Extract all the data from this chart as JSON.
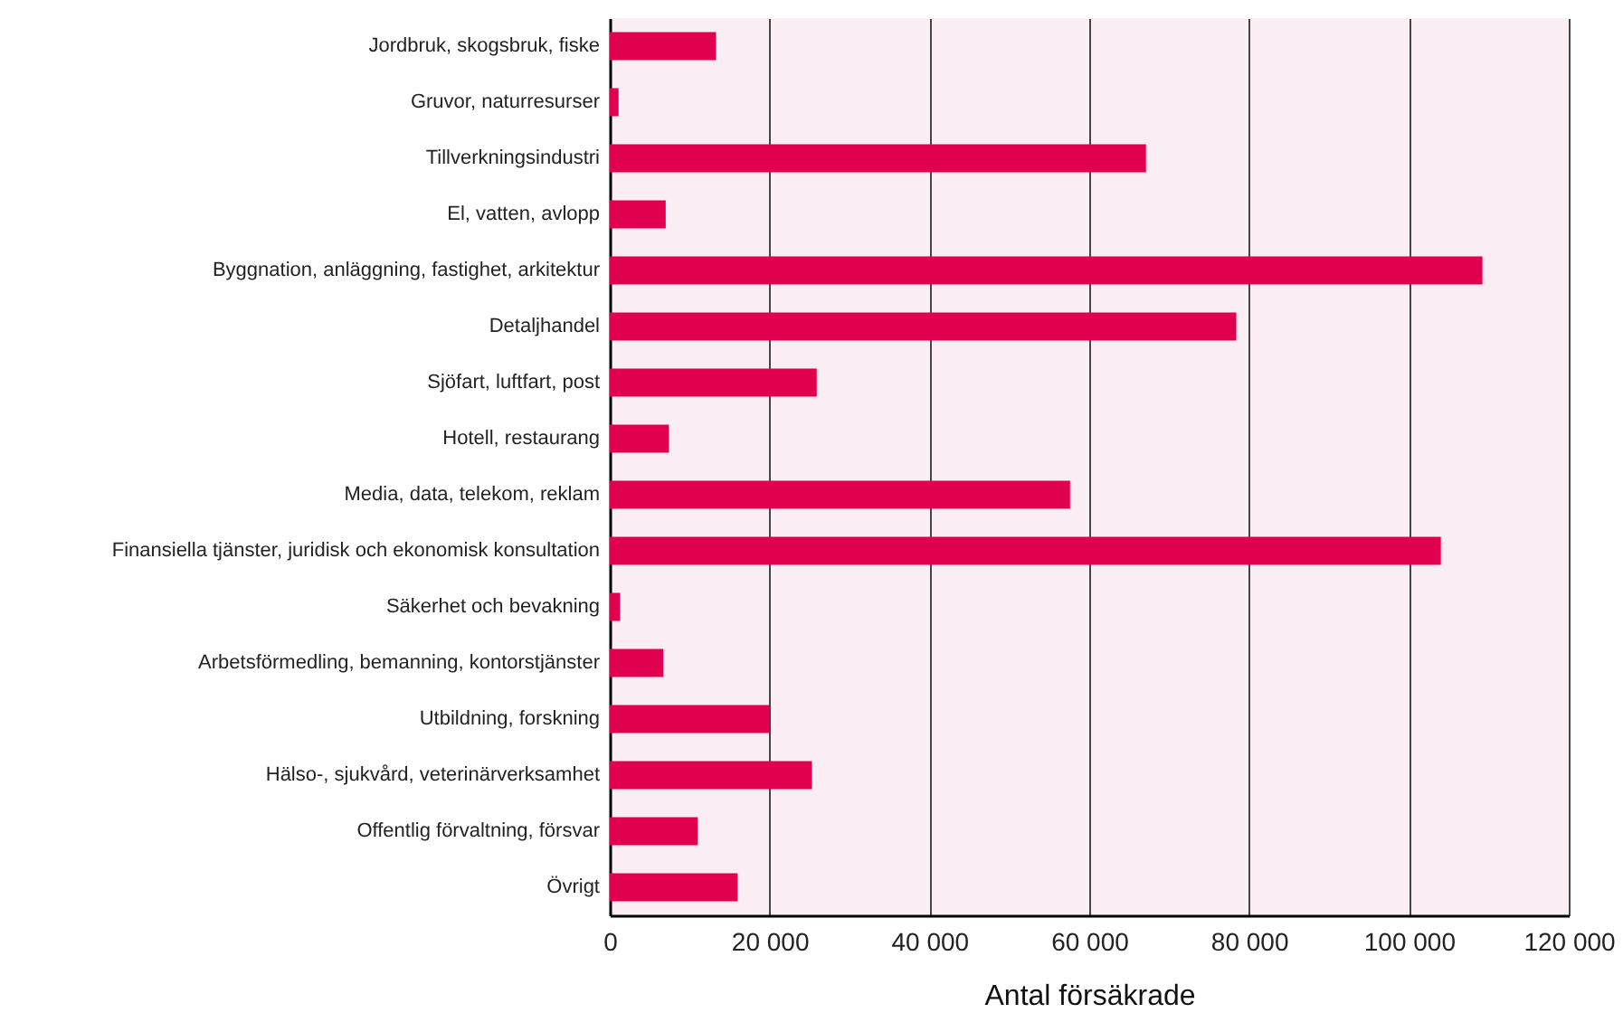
{
  "chart_data": {
    "type": "bar",
    "orientation": "horizontal",
    "xlabel": "Antal försäkrade",
    "categories": [
      "Jordbruk, skogsbruk, fiske",
      "Gruvor, naturresurser",
      "Tillverkningsindustri",
      "El, vatten, avlopp",
      "Byggnation, anläggning, fastighet, arkitektur",
      "Detaljhandel",
      "Sjöfart, luftfart, post",
      "Hotell, restaurang",
      "Media, data, telekom, reklam",
      "Finansiella tjänster, juridisk och ekonomisk konsultation",
      "Säkerhet och bevakning",
      "Arbetsförmedling, bemanning, kontorstjänster",
      "Utbildning, forskning",
      "Hälso-, sjukvård, veterinärverksamhet",
      "Offentlig förvaltning, försvar",
      "Övrigt"
    ],
    "values": [
      13300,
      1100,
      67100,
      7000,
      109200,
      78400,
      25900,
      7400,
      57600,
      104000,
      1300,
      6700,
      20000,
      25300,
      11000,
      16000
    ],
    "color": "#e0004f",
    "xlim": [
      0,
      120000
    ],
    "xticks": [
      {
        "value": 0,
        "label": "0"
      },
      {
        "value": 20000,
        "label": "20 000"
      },
      {
        "value": 40000,
        "label": "40 000"
      },
      {
        "value": 60000,
        "label": "60 000"
      },
      {
        "value": 80000,
        "label": "80 000"
      },
      {
        "value": 100000,
        "label": "100 000"
      },
      {
        "value": 120000,
        "label": "120 000"
      }
    ],
    "grid": "x"
  }
}
